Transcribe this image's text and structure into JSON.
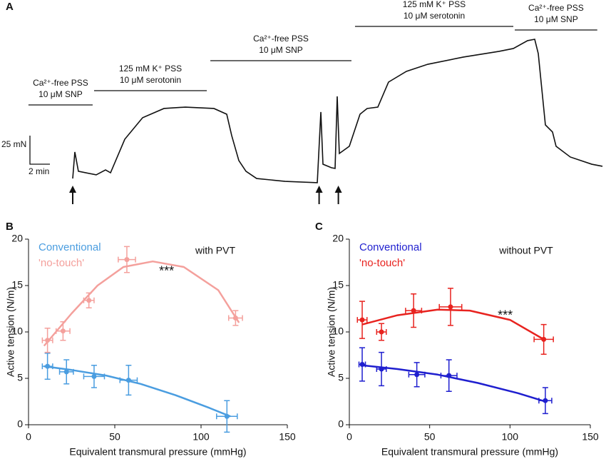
{
  "chart_data": [
    {
      "panel": "A",
      "type": "trace",
      "scale_bar": {
        "y_label": "25 mN",
        "x_label": "2 min"
      },
      "x": [
        0,
        0.22,
        0.59,
        2.44,
        3.41,
        3.93,
        5.41,
        7.26,
        9.48,
        11.7,
        14.67,
        16,
        16.52,
        17.26,
        18,
        19.11,
        22.07,
        25.41,
        25.78,
        26,
        26.89,
        27.26,
        27.48,
        27.7,
        28.74,
        29.85,
        30.59,
        31.7,
        32.81,
        34.67,
        36.89,
        40.59,
        44.3,
        45.78,
        47.26,
        48,
        48.37,
        49.11,
        49.85,
        50.22,
        51.7,
        53.93,
        55.04
      ],
      "series": [
        {
          "color": "#111111",
          "values": [
            3.1,
            26.3,
            9.4,
            6.3,
            10.6,
            8.1,
            37.5,
            56.3,
            64.4,
            65.6,
            64.4,
            59.4,
            40.6,
            18.8,
            9.4,
            3.1,
            0.6,
            -0.6,
            61.3,
            15.6,
            12.5,
            11.9,
            75,
            25,
            31.3,
            59.4,
            64.4,
            65.6,
            87.5,
            96.9,
            103.1,
            109.4,
            114.4,
            116.9,
            123.8,
            125,
            112.5,
            50,
            43.8,
            31.3,
            21.9,
            15.6,
            13.8
          ]
        }
      ],
      "conditions": [
        {
          "lines": [
            "Ca²⁺-free PSS",
            "10 μM SNP"
          ],
          "start": -4.6,
          "end": 2.07
        },
        {
          "lines": [
            "125 mM K⁺ PSS",
            "10 μM serotonin"
          ],
          "start": 2.22,
          "end": 13.93
        },
        {
          "lines": [
            "Ca²⁺-free PSS",
            "10 μM SNP"
          ],
          "start": 14.3,
          "end": 28.96
        },
        {
          "lines": [
            "125 mM K⁺ PSS",
            "10 μM serotonin"
          ],
          "start": 29.33,
          "end": 45.78
        },
        {
          "lines": [
            "Ca²⁺-free PSS",
            "10 μM SNP"
          ],
          "start": 45.93,
          "end": 54.5
        }
      ],
      "arrows": [
        0,
        25.6,
        27.6
      ]
    },
    {
      "panel": "B",
      "type": "scatter",
      "note": "with PVT",
      "annotation": "***",
      "x_label": "Equivalent transmural pressure (mmHg)",
      "y_label": "Active  tension (N/m)",
      "xlim": [
        0,
        150
      ],
      "xticks": [
        0,
        50,
        100,
        150
      ],
      "ylim": [
        0,
        20
      ],
      "yticks": [
        0,
        5,
        10,
        15,
        20
      ],
      "series": [
        {
          "name": "Conventional",
          "color": "#4a9de0",
          "x": [
            11,
            22,
            38,
            58,
            115
          ],
          "xerr": [
            3,
            4,
            6,
            5,
            6
          ],
          "values": [
            6.3,
            5.7,
            5.2,
            4.8,
            0.9
          ],
          "yerr": [
            1.4,
            1.3,
            1.2,
            1.6,
            1.7
          ],
          "fit_x": [
            9,
            25,
            45,
            65,
            85,
            105,
            117
          ],
          "fit_values": [
            6.3,
            5.9,
            5.3,
            4.4,
            3.2,
            1.8,
            0.9
          ]
        },
        {
          "name": "'no-touch'",
          "color": "#f4a09c",
          "x": [
            11,
            20,
            35,
            57,
            120
          ],
          "xerr": [
            3,
            4,
            3,
            5,
            4
          ],
          "values": [
            9.1,
            10.1,
            13.4,
            17.8,
            11.5
          ],
          "yerr": [
            1.3,
            1,
            0.8,
            1.4,
            0.8
          ],
          "fit_x": [
            9,
            25,
            40,
            55,
            72,
            90,
            110,
            122
          ],
          "fit_values": [
            8.5,
            12,
            15,
            17,
            17.6,
            17,
            14.5,
            11
          ]
        }
      ]
    },
    {
      "panel": "C",
      "type": "scatter",
      "note": "without PVT",
      "annotation": "***",
      "x_label": "Equivalent transmural pressure (mmHg)",
      "y_label": "Active  tension (N/m)",
      "xlim": [
        0,
        150
      ],
      "xticks": [
        0,
        50,
        100,
        150
      ],
      "ylim": [
        0,
        20
      ],
      "yticks": [
        0,
        5,
        10,
        15,
        20
      ],
      "series": [
        {
          "name": "Conventional",
          "color": "#1f1fcf",
          "x": [
            8,
            20,
            42,
            62,
            122
          ],
          "xerr": [
            2,
            3,
            5,
            5,
            4
          ],
          "values": [
            6.5,
            6,
            5.4,
            5.3,
            2.6
          ],
          "yerr": [
            1.8,
            1.8,
            1.3,
            1.7,
            1.4
          ],
          "fit_x": [
            8,
            30,
            55,
            80,
            105,
            122
          ],
          "fit_values": [
            6.4,
            6,
            5.4,
            4.5,
            3.4,
            2.5
          ]
        },
        {
          "name": "'no-touch'",
          "color": "#e8231f",
          "x": [
            8,
            20,
            40,
            63,
            121
          ],
          "xerr": [
            3,
            3,
            5,
            7,
            6
          ],
          "values": [
            11.3,
            10,
            12.3,
            12.7,
            9.2
          ],
          "yerr": [
            2,
            0.9,
            1.8,
            2,
            1.6
          ],
          "fit_x": [
            8,
            30,
            55,
            75,
            100,
            121
          ],
          "fit_values": [
            10.8,
            11.8,
            12.4,
            12.3,
            11.3,
            9.2
          ]
        }
      ]
    }
  ]
}
